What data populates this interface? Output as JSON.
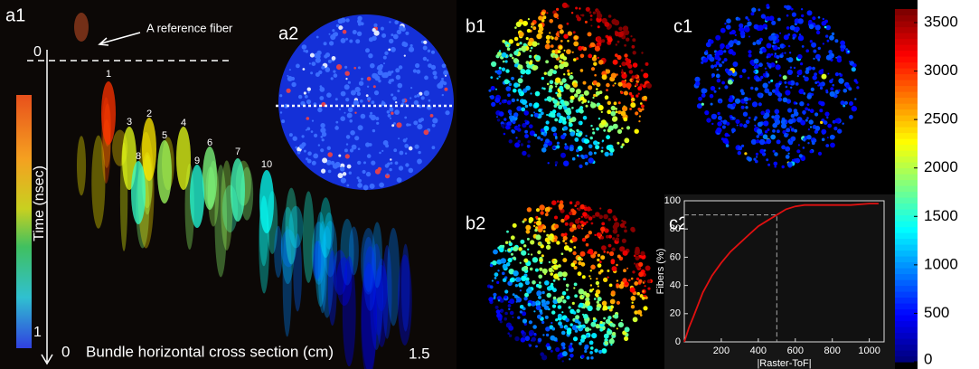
{
  "figure": {
    "panel_a1": "a1",
    "panel_a2": "a2",
    "panel_b1": "b1",
    "panel_b2": "b2",
    "panel_c1": "c1",
    "panel_c2": "c2",
    "reference_note": "A reference fiber",
    "time_top": "0",
    "time_bottom": "1",
    "time_label": "Time (nsec)",
    "x_start": "0",
    "x_label": "Bundle horizontal cross section (cm)",
    "x_end": "1.5",
    "peak_labels": [
      "1",
      "2",
      "3",
      "4",
      "5",
      "6",
      "7",
      "8",
      "9",
      "10"
    ]
  },
  "chart_data": [
    {
      "type": "line",
      "x_label": "|Raster-ToF|",
      "y_label": "Fibers (%)",
      "x": [
        0,
        25,
        50,
        100,
        150,
        200,
        250,
        300,
        350,
        400,
        450,
        500,
        550,
        600,
        650,
        700,
        800,
        900,
        1000,
        1050
      ],
      "series": [
        {
          "color": "#e01010",
          "values": [
            0,
            10,
            18,
            35,
            47,
            56,
            64,
            70,
            76,
            82,
            86,
            90,
            94,
            96,
            97,
            97,
            97,
            97,
            98,
            98
          ]
        }
      ],
      "guide": {
        "x": 500,
        "y": 90
      },
      "xlim": [
        0,
        1080
      ],
      "ylim": [
        0,
        100
      ],
      "xticks": [
        200,
        400,
        600,
        800,
        1000
      ],
      "yticks": [
        0,
        20,
        40,
        60,
        80,
        100
      ]
    },
    {
      "type": "colorbar",
      "colormap": "jet",
      "ylim": [
        0,
        3640
      ],
      "yticks": [
        0,
        500,
        1000,
        1500,
        2000,
        2500,
        3000,
        3500
      ]
    }
  ]
}
